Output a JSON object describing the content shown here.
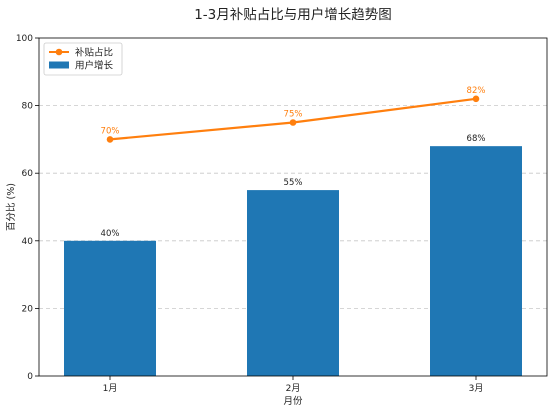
{
  "chart_data": {
    "type": "bar",
    "title": "1-3月补贴占比与用户增长趋势图",
    "xlabel": "月份",
    "ylabel": "百分比 (%)",
    "categories": [
      "1月",
      "2月",
      "3月"
    ],
    "ylim": [
      0,
      100
    ],
    "yticks": [
      0,
      20,
      40,
      60,
      80,
      100
    ],
    "grid": "y-dashed",
    "legend_position": "top-left",
    "series": [
      {
        "name": "用户增长",
        "type": "bar",
        "color": "#1f77b4",
        "values": [
          40,
          55,
          68
        ],
        "labels": [
          "40%",
          "55%",
          "68%"
        ]
      },
      {
        "name": "补贴占比",
        "type": "line",
        "marker": "circle",
        "color": "#ff7f0e",
        "values": [
          70,
          75,
          82
        ],
        "labels": [
          "70%",
          "75%",
          "82%"
        ]
      }
    ]
  }
}
